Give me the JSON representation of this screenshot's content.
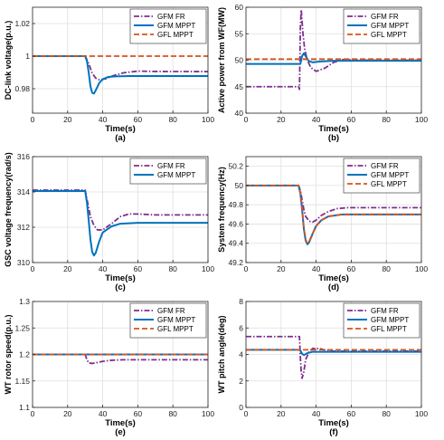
{
  "colors": {
    "GFM FR": "#7e2f8e",
    "GFM MPPT": "#0072bd",
    "GFL MPPT": "#d95319",
    "grid": "#dfdfdf",
    "axis": "#262626"
  },
  "chart_data": [
    {
      "type": "line",
      "caption": "(a)",
      "xlabel": "Time(s)",
      "ylabel": "DC-link voltage(p.u.)",
      "xlim": [
        0,
        100
      ],
      "ylim": [
        0.965,
        1.03
      ],
      "xticks": [
        0,
        20,
        40,
        60,
        80,
        100
      ],
      "yticks": [
        0.98,
        1,
        1.02
      ],
      "ytick_labels": [
        "0.98",
        "1",
        "1.02"
      ],
      "grid": true,
      "legend": "top-right",
      "series": [
        {
          "name": "GFM FR",
          "style": "dashdot",
          "x": [
            0,
            30,
            32,
            34,
            36,
            38,
            42,
            46,
            52,
            60,
            70,
            100
          ],
          "y": [
            1.0,
            1.0,
            0.9955,
            0.9895,
            0.9865,
            0.9855,
            0.9862,
            0.988,
            0.9898,
            0.9908,
            0.9906,
            0.9905
          ]
        },
        {
          "name": "GFM MPPT",
          "style": "solid",
          "x": [
            0,
            30,
            31,
            32,
            33,
            34,
            35,
            36,
            38,
            40,
            43,
            47,
            55,
            70,
            100
          ],
          "y": [
            1.0,
            1.0,
            0.997,
            0.99,
            0.9815,
            0.9775,
            0.977,
            0.979,
            0.9835,
            0.9858,
            0.9872,
            0.9876,
            0.9878,
            0.9878,
            0.9878
          ]
        },
        {
          "name": "GFL MPPT",
          "style": "dashed",
          "x": [
            0,
            100
          ],
          "y": [
            1.0,
            1.0
          ]
        }
      ]
    },
    {
      "type": "line",
      "caption": "(b)",
      "xlabel": "Time(s)",
      "ylabel": "Active power from WF(MW)",
      "xlim": [
        0,
        100
      ],
      "ylim": [
        40,
        60
      ],
      "xticks": [
        0,
        20,
        40,
        60,
        80,
        100
      ],
      "yticks": [
        40,
        45,
        50,
        55,
        60
      ],
      "ytick_labels": [
        "40",
        "45",
        "50",
        "55",
        "60"
      ],
      "grid": true,
      "legend": "top-right",
      "series": [
        {
          "name": "GFM FR",
          "style": "dashdot",
          "x": [
            0,
            30,
            30.5,
            31,
            31.5,
            32.5,
            33.5,
            35,
            37,
            40,
            45,
            50,
            55,
            62,
            70,
            100
          ],
          "y": [
            45,
            45,
            44.5,
            56,
            59.5,
            55,
            52,
            50,
            48.6,
            47.9,
            48.5,
            49.6,
            50.1,
            50.1,
            50.0,
            50.0
          ]
        },
        {
          "name": "GFM MPPT",
          "style": "solid",
          "x": [
            0,
            30,
            31,
            32,
            33,
            34,
            35,
            36,
            38,
            42,
            50,
            100
          ],
          "y": [
            49.3,
            49.3,
            49.3,
            50.8,
            51.3,
            50.8,
            50.2,
            49.8,
            49.6,
            49.75,
            49.9,
            49.9
          ]
        },
        {
          "name": "GFL MPPT",
          "style": "dashed",
          "x": [
            0,
            100
          ],
          "y": [
            50.2,
            50.2
          ]
        }
      ]
    },
    {
      "type": "line",
      "caption": "(c)",
      "xlabel": "Time(s)",
      "ylabel": "GSC voltage frequency(rad/s)",
      "xlim": [
        0,
        100
      ],
      "ylim": [
        310,
        316
      ],
      "xticks": [
        0,
        20,
        40,
        60,
        80,
        100
      ],
      "yticks": [
        310,
        312,
        314,
        316
      ],
      "ytick_labels": [
        "310",
        "312",
        "314",
        "316"
      ],
      "grid": true,
      "legend": "top-right",
      "series": [
        {
          "name": "GFM FR",
          "style": "dashdot",
          "x": [
            0,
            30,
            31,
            32,
            33,
            35,
            37,
            40,
            45,
            50,
            55,
            60,
            70,
            100
          ],
          "y": [
            314.1,
            314.1,
            313.6,
            313.1,
            312.6,
            312.1,
            311.85,
            311.85,
            312.2,
            312.6,
            312.75,
            312.75,
            312.7,
            312.7
          ]
        },
        {
          "name": "GFM MPPT",
          "style": "solid",
          "x": [
            0,
            30,
            31,
            32,
            33,
            34,
            35,
            36,
            38,
            40,
            45,
            50,
            60,
            100
          ],
          "y": [
            314.05,
            314.05,
            313.4,
            312.4,
            311.3,
            310.6,
            310.4,
            310.55,
            311.2,
            311.7,
            312.05,
            312.2,
            312.25,
            312.25
          ]
        }
      ]
    },
    {
      "type": "line",
      "caption": "(d)",
      "xlabel": "Time(s)",
      "ylabel": "System frequency(Hz)",
      "xlim": [
        0,
        100
      ],
      "ylim": [
        49.2,
        50.3
      ],
      "xticks": [
        0,
        20,
        40,
        60,
        80,
        100
      ],
      "yticks": [
        49.2,
        49.4,
        49.6,
        49.8,
        50,
        50.2
      ],
      "ytick_labels": [
        "49.2",
        "49.4",
        "49.6",
        "49.8",
        "50",
        "50.2"
      ],
      "grid": true,
      "legend": "top-right",
      "series": [
        {
          "name": "GFM FR",
          "style": "dashdot",
          "x": [
            0,
            30,
            31,
            32,
            33,
            34,
            36,
            38,
            40,
            43,
            47,
            52,
            58,
            70,
            100
          ],
          "y": [
            50.0,
            50.0,
            49.95,
            49.85,
            49.75,
            49.68,
            49.63,
            49.62,
            49.64,
            49.69,
            49.73,
            49.76,
            49.77,
            49.77,
            49.77
          ]
        },
        {
          "name": "GFM MPPT",
          "style": "solid",
          "x": [
            0,
            30,
            31,
            32,
            33,
            34,
            35,
            36,
            38,
            40,
            43,
            47,
            55,
            70,
            100
          ],
          "y": [
            50.0,
            50.0,
            49.92,
            49.75,
            49.55,
            49.43,
            49.39,
            49.41,
            49.5,
            49.58,
            49.64,
            49.68,
            49.7,
            49.7,
            49.7
          ]
        },
        {
          "name": "GFL MPPT",
          "style": "dashed",
          "x": [
            0,
            30,
            31,
            32,
            33,
            34,
            35,
            36,
            38,
            40,
            43,
            47,
            55,
            70,
            100
          ],
          "y": [
            50.0,
            50.0,
            49.93,
            49.76,
            49.56,
            49.44,
            49.4,
            49.42,
            49.5,
            49.58,
            49.64,
            49.68,
            49.7,
            49.7,
            49.7
          ]
        }
      ]
    },
    {
      "type": "line",
      "caption": "(e)",
      "xlabel": "Time(s)",
      "ylabel": "WT rotor speed(p.u.)",
      "xlim": [
        0,
        100
      ],
      "ylim": [
        1.1,
        1.3
      ],
      "xticks": [
        0,
        20,
        40,
        60,
        80,
        100
      ],
      "yticks": [
        1.1,
        1.15,
        1.2,
        1.25,
        1.3
      ],
      "ytick_labels": [
        "1.1",
        "1.15",
        "1.2",
        "1.25",
        "1.3"
      ],
      "grid": true,
      "legend": "top-right",
      "series": [
        {
          "name": "GFM FR",
          "style": "dashdot",
          "x": [
            0,
            30,
            31,
            32,
            34,
            36,
            40,
            45,
            52,
            60,
            100
          ],
          "y": [
            1.2,
            1.2,
            1.19,
            1.184,
            1.183,
            1.184,
            1.187,
            1.189,
            1.19,
            1.19,
            1.19
          ]
        },
        {
          "name": "GFM MPPT",
          "style": "solid",
          "x": [
            0,
            100
          ],
          "y": [
            1.2,
            1.2
          ]
        },
        {
          "name": "GFL MPPT",
          "style": "dashed",
          "x": [
            0,
            100
          ],
          "y": [
            1.2,
            1.2
          ]
        }
      ]
    },
    {
      "type": "line",
      "caption": "(f)",
      "xlabel": "Time(s)",
      "ylabel": "WT pitch angle(deg)",
      "xlim": [
        0,
        100
      ],
      "ylim": [
        0,
        8
      ],
      "xticks": [
        0,
        20,
        40,
        60,
        80,
        100
      ],
      "yticks": [
        0,
        2,
        4,
        6,
        8
      ],
      "ytick_labels": [
        "0",
        "2",
        "4",
        "6",
        "8"
      ],
      "grid": true,
      "legend": "top-right",
      "series": [
        {
          "name": "GFM FR",
          "style": "dashdot",
          "x": [
            0,
            30,
            30.5,
            31,
            31.5,
            32,
            33,
            34,
            36,
            38,
            42,
            46,
            50,
            55,
            60,
            100
          ],
          "y": [
            5.35,
            5.35,
            5.35,
            3.8,
            2.7,
            2.2,
            2.7,
            3.6,
            4.2,
            4.45,
            4.45,
            4.3,
            4.25,
            4.25,
            4.25,
            4.25
          ]
        },
        {
          "name": "GFM MPPT",
          "style": "solid",
          "x": [
            0,
            30,
            31,
            32,
            33,
            35,
            38,
            42,
            50,
            100
          ],
          "y": [
            4.35,
            4.35,
            4.3,
            4.05,
            3.95,
            4.1,
            4.2,
            4.2,
            4.2,
            4.2
          ]
        },
        {
          "name": "GFL MPPT",
          "style": "dashed",
          "x": [
            0,
            100
          ],
          "y": [
            4.35,
            4.35
          ]
        }
      ]
    }
  ]
}
